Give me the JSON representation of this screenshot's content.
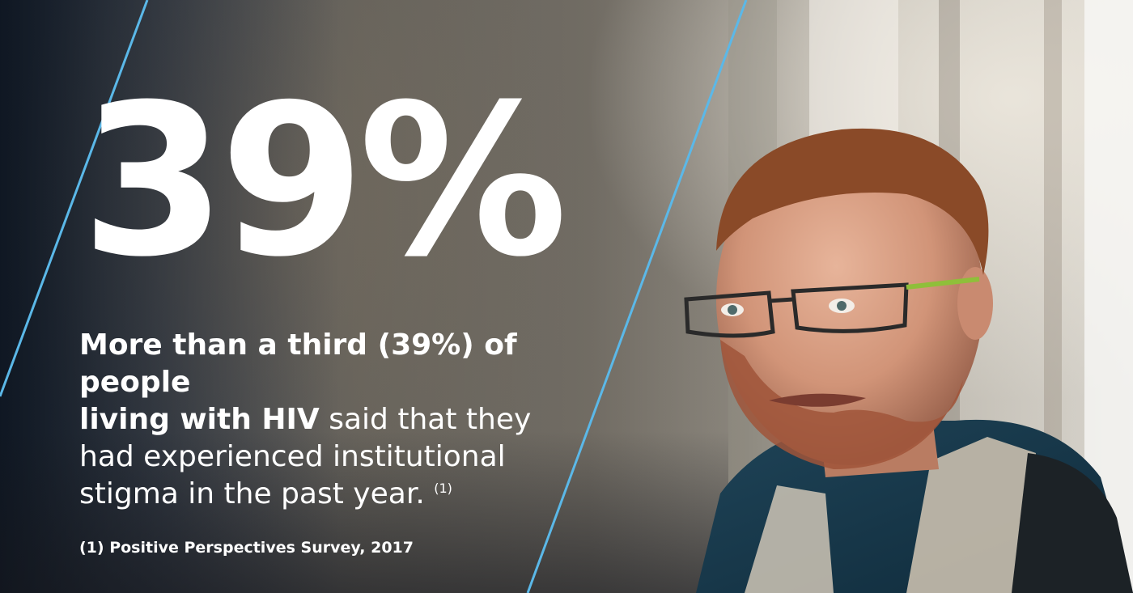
{
  "stat": {
    "value": "39%"
  },
  "headline": {
    "bold_part_1": "More than a third (39%) of people",
    "bold_part_2": "living with HIV",
    "regular_part_1": " said that they",
    "regular_part_2": "had experienced institutional",
    "regular_part_3": "stigma in the past year.",
    "footnote_marker": "(1)"
  },
  "footnote": {
    "text": "(1) Positive Perspectives Survey, 2017"
  },
  "colors": {
    "accent_line": "#5bb8e8",
    "text": "#ffffff"
  }
}
